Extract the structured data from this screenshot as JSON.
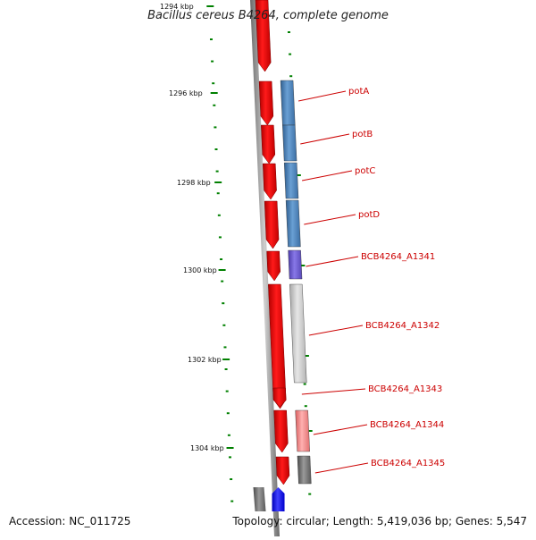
{
  "title": "Bacillus cereus B4264, complete genome",
  "footer": {
    "accession": "Accession: NC_011725",
    "topology": "Topology: circular; Length: 5,419,036 bp; Genes: 5,547"
  },
  "colors": {
    "strand_red": "#ff0000",
    "blue_gene": "#4a82b8",
    "purple_gene": "#6a5acd",
    "gray_gene": "#c8c8c8",
    "pink_gene": "#f08080",
    "dark_gray_gene": "#6e6e6e",
    "bright_blue": "#0000ff",
    "label_red": "#cc0000",
    "tick_green": "#008000",
    "backbone": "#8a8a8a"
  },
  "kbp_labels": [
    "1294 kbp",
    "1296 kbp",
    "1298 kbp",
    "1300 kbp",
    "1302 kbp",
    "1304 kbp"
  ],
  "genes": [
    {
      "name": "potA",
      "color": "blue_gene"
    },
    {
      "name": "potB",
      "color": "blue_gene"
    },
    {
      "name": "potC",
      "color": "blue_gene"
    },
    {
      "name": "potD",
      "color": "blue_gene"
    },
    {
      "name": "BCB4264_A1341",
      "color": "purple_gene"
    },
    {
      "name": "BCB4264_A1342",
      "color": "gray_gene"
    },
    {
      "name": "BCB4264_A1343",
      "color": "none"
    },
    {
      "name": "BCB4264_A1344",
      "color": "pink_gene"
    },
    {
      "name": "BCB4264_A1345",
      "color": "dark_gray_gene"
    }
  ]
}
